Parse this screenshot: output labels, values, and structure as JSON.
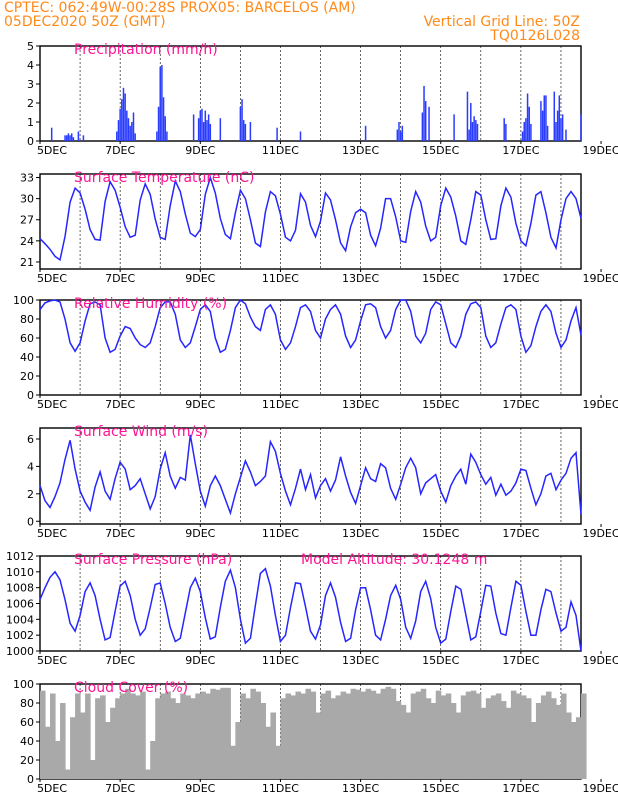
{
  "header": {
    "line1_left": "CPTEC:   062:49W-00:28S   PROX05: BARCELOS (AM)",
    "line2_left": "05DEC2020 50Z (GMT)",
    "line2_right": "Vertical Grid Line: 50Z",
    "line3_right": "TQ0126L028"
  },
  "x_ticks": [
    "5DEC",
    "7DEC",
    "9DEC",
    "11DEC",
    "13DEC",
    "15DEC",
    "17DEC",
    "19DEC"
  ],
  "colors": {
    "header": "#ff8a1a",
    "title": "#ff1493",
    "line": "#2626ff",
    "bar": "#2a3cff",
    "cloud": "#a9a9a9"
  },
  "chart_data": [
    {
      "type": "bar",
      "title": "Precipitation (mm/h)",
      "y_ticks": [
        "0",
        "1",
        "2",
        "3",
        "4",
        "5"
      ],
      "ylim": [
        0,
        5
      ],
      "x_unit": "hours since 05DEC 00Z",
      "x": [
        7,
        15,
        16,
        17,
        18,
        19,
        20,
        23,
        26,
        46,
        47,
        48,
        49,
        50,
        51,
        52,
        53,
        54,
        55,
        56,
        57,
        70,
        71,
        72,
        73,
        74,
        75,
        76,
        92,
        95,
        96,
        97,
        98,
        99,
        100,
        101,
        102,
        108,
        120,
        121,
        122,
        123,
        126,
        142,
        156,
        195,
        214,
        215,
        216,
        217,
        229,
        230,
        231,
        233,
        248,
        256,
        257,
        258,
        259,
        260,
        261,
        262,
        278,
        279,
        289,
        290,
        291,
        292,
        293,
        294,
        300,
        301,
        302,
        303,
        304,
        308,
        309,
        310,
        311,
        312,
        313,
        315,
        324
      ],
      "values": [
        0.7,
        0.3,
        0.3,
        0.4,
        0.3,
        0.4,
        0.2,
        0.5,
        0.3,
        0.5,
        1.1,
        1.7,
        2.2,
        2.8,
        2.5,
        1.6,
        1.2,
        0.8,
        1.0,
        1.5,
        0.4,
        0.5,
        1.8,
        3.9,
        4.0,
        2.3,
        1.3,
        0.5,
        1.4,
        1.2,
        1.6,
        1.7,
        1.0,
        1.6,
        1.1,
        1.4,
        0.9,
        1.2,
        1.8,
        2.2,
        1.1,
        0.9,
        1.0,
        0.7,
        0.5,
        0.8,
        0.6,
        1.0,
        0.5,
        0.8,
        1.5,
        2.9,
        2.1,
        1.8,
        1.4,
        2.6,
        0.6,
        2.0,
        1.0,
        1.3,
        1.1,
        0.9,
        1.2,
        0.9,
        0.5,
        1.0,
        1.2,
        2.5,
        1.8,
        0.9,
        2.1,
        1.6,
        2.4,
        2.4,
        0.8,
        2.6,
        1.0,
        1.6,
        2.4,
        1.2,
        1.4,
        0.6,
        1.4
      ]
    },
    {
      "type": "line",
      "title": "Surface Temperature (nC)",
      "y_ticks": [
        "21",
        "24",
        "27",
        "30",
        "33"
      ],
      "ylim": [
        20,
        33.5
      ],
      "x_unit": "hours since 05DEC 00Z",
      "x": [
        0,
        3,
        6,
        9,
        12,
        15,
        18,
        21,
        24,
        27,
        30,
        33,
        36,
        39,
        42,
        45,
        48,
        51,
        54,
        57,
        60,
        63,
        66,
        69,
        72,
        75,
        78,
        81,
        84,
        87,
        90,
        93,
        96,
        99,
        102,
        105,
        108,
        111,
        114,
        117,
        120,
        123,
        126,
        129,
        132,
        135,
        138,
        141,
        144,
        147,
        150,
        153,
        156,
        159,
        162,
        165,
        168,
        171,
        174,
        177,
        180,
        183,
        186,
        189,
        192,
        195,
        198,
        201,
        204,
        207,
        210,
        213,
        216,
        219,
        222,
        225,
        228,
        231,
        234,
        237,
        240,
        243,
        246,
        249,
        252,
        255,
        258,
        261,
        264,
        267,
        270,
        273,
        276,
        279,
        282,
        285,
        288,
        291,
        294,
        297,
        300,
        303,
        306,
        309,
        312,
        315,
        318,
        321,
        324
      ],
      "values": [
        24.3,
        23.6,
        22.8,
        21.8,
        21.3,
        24.6,
        29.5,
        31.5,
        30.8,
        28.5,
        25.6,
        24.2,
        24.1,
        29.6,
        32.4,
        31.2,
        28.8,
        26.0,
        24.5,
        24.8,
        29.8,
        32.1,
        30.6,
        27.1,
        24.5,
        24.2,
        29.0,
        32.5,
        31.0,
        27.8,
        25.1,
        24.6,
        25.6,
        30.6,
        33.0,
        30.8,
        27.2,
        24.9,
        24.3,
        28.0,
        31.2,
        30.0,
        27.0,
        23.7,
        23.2,
        28.1,
        31.0,
        30.4,
        27.8,
        24.5,
        24.0,
        25.5,
        30.7,
        29.5,
        26.2,
        24.6,
        26.8,
        30.8,
        29.8,
        27.0,
        23.7,
        22.6,
        26.0,
        28.0,
        28.5,
        28.0,
        24.8,
        23.3,
        25.8,
        30.0,
        30.0,
        27.4,
        24.0,
        23.8,
        28.2,
        31.0,
        29.5,
        26.1,
        24.0,
        24.5,
        29.0,
        31.5,
        30.2,
        27.5,
        24.0,
        23.5,
        27.0,
        31.0,
        30.5,
        27.0,
        24.2,
        24.3,
        29.0,
        31.5,
        30.2,
        26.5,
        24.0,
        23.3,
        26.5,
        30.5,
        31.0,
        28.0,
        24.5,
        23.0,
        27.0,
        30.0,
        31.0,
        30.0,
        27.2
      ]
    },
    {
      "type": "line",
      "title": "Relative Humidity (%)",
      "y_ticks": [
        "0",
        "20",
        "40",
        "60",
        "80",
        "100"
      ],
      "ylim": [
        0,
        100
      ],
      "x_unit": "hours since 05DEC 00Z",
      "x": [
        0,
        3,
        6,
        9,
        12,
        15,
        18,
        21,
        24,
        27,
        30,
        33,
        36,
        39,
        42,
        45,
        48,
        51,
        54,
        57,
        60,
        63,
        66,
        69,
        72,
        75,
        78,
        81,
        84,
        87,
        90,
        93,
        96,
        99,
        102,
        105,
        108,
        111,
        114,
        117,
        120,
        123,
        126,
        129,
        132,
        135,
        138,
        141,
        144,
        147,
        150,
        153,
        156,
        159,
        162,
        165,
        168,
        171,
        174,
        177,
        180,
        183,
        186,
        189,
        192,
        195,
        198,
        201,
        204,
        207,
        210,
        213,
        216,
        219,
        222,
        225,
        228,
        231,
        234,
        237,
        240,
        243,
        246,
        249,
        252,
        255,
        258,
        261,
        264,
        267,
        270,
        273,
        276,
        279,
        282,
        285,
        288,
        291,
        294,
        297,
        300,
        303,
        306,
        309,
        312,
        315,
        318,
        321,
        324
      ],
      "values": [
        90,
        97,
        99,
        100,
        98,
        80,
        55,
        46,
        55,
        78,
        96,
        98,
        95,
        60,
        45,
        48,
        62,
        72,
        70,
        60,
        53,
        50,
        55,
        72,
        92,
        98,
        98,
        85,
        58,
        50,
        55,
        72,
        90,
        95,
        88,
        60,
        45,
        48,
        68,
        92,
        100,
        96,
        82,
        72,
        68,
        90,
        95,
        85,
        58,
        48,
        55,
        72,
        92,
        95,
        88,
        68,
        60,
        80,
        90,
        95,
        85,
        62,
        50,
        58,
        78,
        95,
        96,
        92,
        72,
        60,
        68,
        90,
        100,
        100,
        88,
        62,
        55,
        65,
        90,
        98,
        95,
        75,
        55,
        50,
        62,
        85,
        96,
        98,
        92,
        62,
        50,
        55,
        75,
        92,
        95,
        90,
        62,
        45,
        52,
        72,
        88,
        95,
        88,
        65,
        50,
        58,
        78,
        92,
        63
      ]
    },
    {
      "type": "line",
      "title": "Surface Wind (m/s)",
      "y_ticks": [
        "0",
        "2",
        "4",
        "6"
      ],
      "ylim": [
        -0.2,
        6.8
      ],
      "x_unit": "hours since 05DEC 00Z",
      "x": [
        0,
        3,
        6,
        9,
        12,
        15,
        18,
        21,
        24,
        27,
        30,
        33,
        36,
        39,
        42,
        45,
        48,
        51,
        54,
        57,
        60,
        63,
        66,
        69,
        72,
        75,
        78,
        81,
        84,
        87,
        90,
        93,
        96,
        99,
        102,
        105,
        108,
        111,
        114,
        117,
        120,
        123,
        126,
        129,
        132,
        135,
        138,
        141,
        144,
        147,
        150,
        153,
        156,
        159,
        162,
        165,
        168,
        171,
        174,
        177,
        180,
        183,
        186,
        189,
        192,
        195,
        198,
        201,
        204,
        207,
        210,
        213,
        216,
        219,
        222,
        225,
        228,
        231,
        234,
        237,
        240,
        243,
        246,
        249,
        252,
        255,
        258,
        261,
        264,
        267,
        270,
        273,
        276,
        279,
        282,
        285,
        288,
        291,
        294,
        297,
        300,
        303,
        306,
        309,
        312,
        315,
        318,
        321,
        324
      ],
      "values": [
        2.6,
        1.5,
        1.0,
        1.8,
        2.8,
        4.5,
        5.9,
        3.8,
        2.2,
        1.4,
        0.8,
        2.5,
        3.6,
        2.2,
        1.6,
        3.1,
        4.3,
        3.8,
        2.3,
        2.6,
        3.1,
        2.0,
        0.9,
        1.8,
        3.8,
        5.0,
        3.3,
        2.4,
        3.2,
        3.0,
        6.3,
        4.2,
        2.2,
        1.1,
        2.6,
        3.3,
        2.6,
        1.6,
        0.6,
        2.0,
        3.2,
        4.4,
        3.6,
        2.6,
        2.9,
        3.3,
        5.8,
        5.1,
        3.5,
        2.2,
        1.2,
        2.4,
        3.8,
        2.3,
        3.4,
        1.7,
        2.6,
        3.1,
        2.2,
        3.0,
        4.7,
        3.3,
        2.1,
        1.3,
        2.6,
        3.9,
        3.1,
        2.9,
        4.2,
        3.9,
        2.4,
        1.6,
        2.7,
        3.9,
        4.6,
        3.9,
        2.0,
        2.8,
        3.1,
        3.4,
        2.2,
        1.4,
        2.6,
        3.3,
        3.8,
        2.7,
        4.9,
        4.3,
        3.4,
        2.7,
        3.2,
        1.9,
        2.7,
        1.9,
        2.2,
        2.8,
        3.8,
        3.7,
        2.4,
        1.2,
        2.0,
        3.3,
        3.5,
        2.3,
        3.0,
        3.5,
        4.6,
        5.0,
        0.5
      ]
    },
    {
      "type": "line",
      "title": "Surface Pressure (hPa)",
      "annotation": "Model Altitude: 30.1248 m",
      "y_ticks": [
        "1000",
        "1002",
        "1004",
        "1006",
        "1008",
        "1010",
        "1012"
      ],
      "ylim": [
        1000,
        1012
      ],
      "x_unit": "hours since 05DEC 00Z",
      "x": [
        0,
        3,
        6,
        9,
        12,
        15,
        18,
        21,
        24,
        27,
        30,
        33,
        36,
        39,
        42,
        45,
        48,
        51,
        54,
        57,
        60,
        63,
        66,
        69,
        72,
        75,
        78,
        81,
        84,
        87,
        90,
        93,
        96,
        99,
        102,
        105,
        108,
        111,
        114,
        117,
        120,
        123,
        126,
        129,
        132,
        135,
        138,
        141,
        144,
        147,
        150,
        153,
        156,
        159,
        162,
        165,
        168,
        171,
        174,
        177,
        180,
        183,
        186,
        189,
        192,
        195,
        198,
        201,
        204,
        207,
        210,
        213,
        216,
        219,
        222,
        225,
        228,
        231,
        234,
        237,
        240,
        243,
        246,
        249,
        252,
        255,
        258,
        261,
        264,
        267,
        270,
        273,
        276,
        279,
        282,
        285,
        288,
        291,
        294,
        297,
        300,
        303,
        306,
        309,
        312,
        315,
        318,
        321,
        324
      ],
      "values": [
        1006.5,
        1008.0,
        1009.3,
        1010.0,
        1009.0,
        1006.5,
        1003.5,
        1002.5,
        1004.5,
        1007.5,
        1008.6,
        1007.0,
        1004.0,
        1001.4,
        1001.7,
        1005.0,
        1008.2,
        1008.8,
        1007.0,
        1004.0,
        1002.0,
        1002.8,
        1005.5,
        1008.4,
        1008.6,
        1006.0,
        1003.0,
        1001.2,
        1001.6,
        1004.8,
        1008.0,
        1009.2,
        1007.5,
        1004.2,
        1001.5,
        1001.8,
        1005.5,
        1008.8,
        1010.2,
        1008.0,
        1004.0,
        1001.0,
        1001.6,
        1005.8,
        1009.8,
        1010.4,
        1008.2,
        1004.5,
        1001.2,
        1002.0,
        1005.5,
        1008.6,
        1008.5,
        1005.6,
        1002.5,
        1001.5,
        1003.3,
        1007.0,
        1008.6,
        1006.8,
        1003.6,
        1001.2,
        1001.6,
        1005.2,
        1008.0,
        1008.0,
        1005.2,
        1002.0,
        1001.4,
        1004.0,
        1007.0,
        1008.3,
        1006.5,
        1003.0,
        1001.6,
        1003.8,
        1007.5,
        1008.8,
        1006.6,
        1003.0,
        1001.0,
        1001.5,
        1005.0,
        1008.2,
        1007.8,
        1004.6,
        1001.4,
        1001.8,
        1005.0,
        1008.3,
        1008.2,
        1004.8,
        1002.2,
        1002.0,
        1005.5,
        1008.8,
        1008.3,
        1005.0,
        1002.0,
        1002.0,
        1005.2,
        1007.8,
        1007.5,
        1004.8,
        1002.5,
        1003.0,
        1006.2,
        1004.5,
        1000.0
      ]
    },
    {
      "type": "area",
      "title": "Cloud Cover (%)",
      "y_ticks": [
        "0",
        "20",
        "40",
        "60",
        "80",
        "100"
      ],
      "ylim": [
        0,
        100
      ],
      "x_unit": "hours since 05DEC 00Z",
      "x": [
        0,
        3,
        6,
        9,
        12,
        15,
        18,
        21,
        24,
        27,
        30,
        33,
        36,
        39,
        42,
        45,
        48,
        51,
        54,
        57,
        60,
        63,
        66,
        69,
        72,
        75,
        78,
        81,
        84,
        87,
        90,
        93,
        96,
        99,
        102,
        105,
        108,
        111,
        114,
        117,
        120,
        123,
        126,
        129,
        132,
        135,
        138,
        141,
        144,
        147,
        150,
        153,
        156,
        159,
        162,
        165,
        168,
        171,
        174,
        177,
        180,
        183,
        186,
        189,
        192,
        195,
        198,
        201,
        204,
        207,
        210,
        213,
        216,
        219,
        222,
        225,
        228,
        231,
        234,
        237,
        240,
        243,
        246,
        249,
        252,
        255,
        258,
        261,
        264,
        267,
        270,
        273,
        276,
        279,
        282,
        285,
        288,
        291,
        294,
        297,
        300,
        303,
        306,
        309,
        312,
        315,
        318,
        321,
        324
      ],
      "values": [
        93,
        55,
        90,
        40,
        80,
        10,
        65,
        90,
        70,
        90,
        20,
        85,
        88,
        60,
        75,
        85,
        90,
        95,
        90,
        88,
        92,
        10,
        40,
        85,
        90,
        92,
        85,
        80,
        90,
        88,
        85,
        90,
        92,
        90,
        95,
        94,
        96,
        96,
        35,
        60,
        90,
        85,
        95,
        92,
        80,
        55,
        70,
        35,
        85,
        90,
        88,
        92,
        90,
        95,
        92,
        70,
        90,
        93,
        85,
        88,
        92,
        90,
        95,
        94,
        92,
        95,
        93,
        90,
        95,
        97,
        95,
        82,
        78,
        70,
        90,
        92,
        95,
        85,
        80,
        93,
        88,
        90,
        80,
        70,
        88,
        92,
        93,
        90,
        75,
        85,
        88,
        90,
        82,
        75,
        93,
        90,
        88,
        85,
        60,
        80,
        88,
        92,
        85,
        78,
        90,
        70,
        60,
        65,
        90
      ]
    }
  ]
}
